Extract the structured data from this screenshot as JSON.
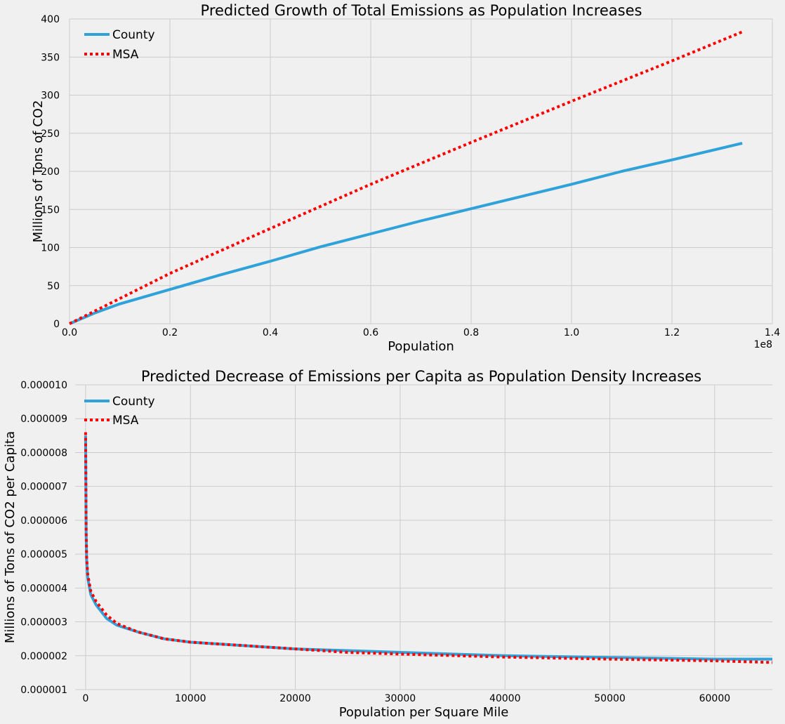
{
  "chart_data": [
    {
      "type": "line",
      "title": "Predicted Growth of Total Emissions as Population Increases",
      "xlabel": "Population",
      "ylabel": "Millions of Tons of CO2",
      "x_offset_label": "1e8",
      "xlim": [
        0,
        1.4
      ],
      "ylim": [
        0,
        400
      ],
      "xticks": [
        0.0,
        0.2,
        0.4,
        0.6,
        0.8,
        1.0,
        1.2,
        1.4
      ],
      "xtick_labels": [
        "0.0",
        "0.2",
        "0.4",
        "0.6",
        "0.8",
        "1.0",
        "1.2",
        "1.4"
      ],
      "yticks": [
        0,
        50,
        100,
        150,
        200,
        250,
        300,
        350,
        400
      ],
      "ytick_labels": [
        "0",
        "50",
        "100",
        "150",
        "200",
        "250",
        "300",
        "350",
        "400"
      ],
      "grid": true,
      "legend": "upper-left",
      "series": [
        {
          "name": "County",
          "color": "#30a2da",
          "style": "solid",
          "x": [
            0.0,
            0.05,
            0.1,
            0.2,
            0.3,
            0.4,
            0.5,
            0.6,
            0.7,
            0.8,
            0.9,
            1.0,
            1.1,
            1.2,
            1.34
          ],
          "y": [
            0,
            14,
            26,
            45,
            64,
            82,
            101,
            118,
            135,
            151,
            167,
            183,
            200,
            215,
            237
          ]
        },
        {
          "name": "MSA",
          "color": "#ff0000",
          "style": "dotted",
          "x": [
            0.0,
            0.1,
            0.2,
            0.4,
            0.6,
            0.8,
            1.0,
            1.2,
            1.34
          ],
          "y": [
            0,
            33,
            66,
            125,
            183,
            238,
            292,
            345,
            383
          ]
        }
      ]
    },
    {
      "type": "line",
      "title": "Predicted Decrease of Emissions per Capita as Population Density Increases",
      "xlabel": "Population per Square Mile",
      "ylabel": "Millions of Tons of CO2 per Capita",
      "xlim": [
        -1000,
        65500
      ],
      "ylim": [
        1e-06,
        1e-05
      ],
      "xticks": [
        0,
        10000,
        20000,
        30000,
        40000,
        50000,
        60000
      ],
      "xtick_labels": [
        "0",
        "10000",
        "20000",
        "30000",
        "40000",
        "50000",
        "60000"
      ],
      "yticks": [
        1e-06,
        2e-06,
        3e-06,
        4e-06,
        5e-06,
        6e-06,
        7e-06,
        8e-06,
        9e-06,
        1e-05
      ],
      "ytick_labels": [
        "0.000001",
        "0.000002",
        "0.000003",
        "0.000004",
        "0.000005",
        "0.000006",
        "0.000007",
        "0.000008",
        "0.000009",
        "0.000010"
      ],
      "grid": true,
      "legend": "upper-left",
      "series": [
        {
          "name": "County",
          "color": "#30a2da",
          "style": "solid",
          "x": [
            1,
            50,
            100,
            200,
            500,
            1000,
            2000,
            3000,
            5000,
            7500,
            10000,
            15000,
            20000,
            25000,
            30000,
            40000,
            50000,
            60000,
            65500
          ],
          "y": [
            8.5e-06,
            5.6e-06,
            4.8e-06,
            4.3e-06,
            3.8e-06,
            3.5e-06,
            3.1e-06,
            2.9e-06,
            2.7e-06,
            2.5e-06,
            2.4e-06,
            2.3e-06,
            2.2e-06,
            2.15e-06,
            2.1e-06,
            2e-06,
            1.95e-06,
            1.9e-06,
            1.9e-06
          ]
        },
        {
          "name": "MSA",
          "color": "#ff0000",
          "style": "dotted",
          "x": [
            1,
            50,
            100,
            200,
            500,
            1000,
            2000,
            3000,
            5000,
            7500,
            10000,
            15000,
            20000,
            25000,
            30000,
            40000,
            50000,
            60000,
            65500
          ],
          "y": [
            8.6e-06,
            5.7e-06,
            4.9e-06,
            4.4e-06,
            3.9e-06,
            3.6e-06,
            3.2e-06,
            2.95e-06,
            2.7e-06,
            2.5e-06,
            2.4e-06,
            2.3e-06,
            2.2e-06,
            2.1e-06,
            2.05e-06,
            1.96e-06,
            1.9e-06,
            1.85e-06,
            1.8e-06
          ]
        }
      ]
    }
  ]
}
